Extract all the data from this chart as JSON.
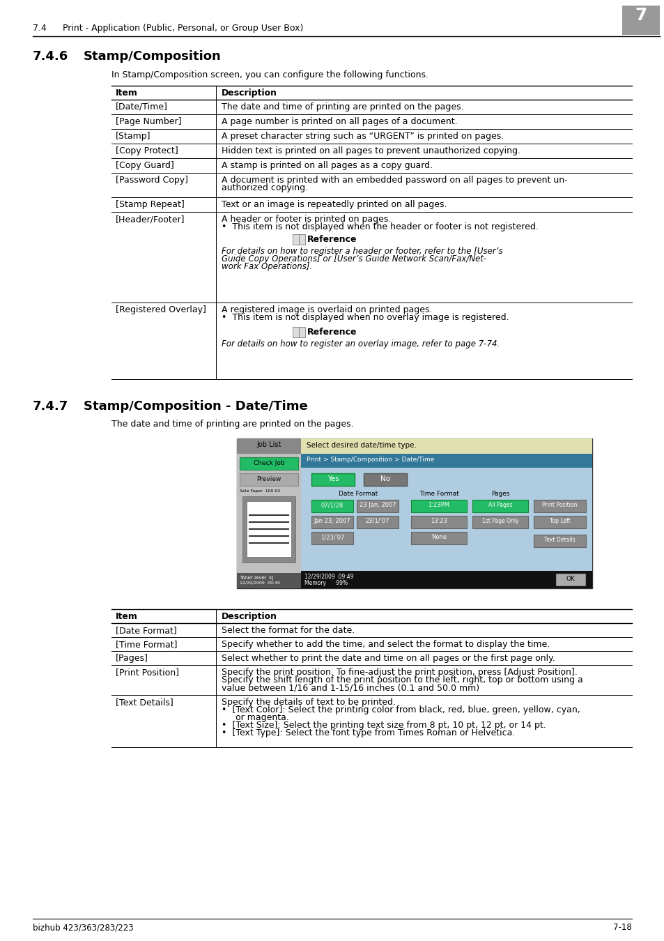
{
  "header_section_num": "7.4",
  "header_section_title": "Print - Application (Public, Personal, or Group User Box)",
  "header_page_num": "7",
  "footer_left": "bizhub 423/363/283/223",
  "footer_right": "7-18",
  "section1_num": "7.4.6",
  "section1_title": "Stamp/Composition",
  "section1_intro": "In Stamp/Composition screen, you can configure the following functions.",
  "table1_col1_header": "Item",
  "table1_col2_header": "Description",
  "table1_rows": [
    [
      "[Date/Time]",
      "[single]The date and time of printing are printed on the pages."
    ],
    [
      "[Page Number]",
      "[single]A page number is printed on all pages of a document."
    ],
    [
      "[Stamp]",
      "[single]A preset character string such as “URGENT” is printed on pages."
    ],
    [
      "[Copy Protect]",
      "[single]Hidden text is printed on all pages to prevent unauthorized copying."
    ],
    [
      "[Copy Guard]",
      "[single]A stamp is printed on all pages as a copy guard."
    ],
    [
      "[Password Copy]",
      "[multi]A document is printed with an embedded password on all pages to prevent un-|authorized copying."
    ],
    [
      "[Stamp Repeat]",
      "[single]Text or an image is repeatedly printed on all pages."
    ],
    [
      "[Header/Footer]",
      "[ref1]A header or footer is printed on pages.|This item is not displayed when the header or footer is not registered.|For details on how to register a header or footer, refer to the [User’s Guide Copy Operations] or [User’s Guide Network Scan/Fax/Net-work Fax Operations]."
    ],
    [
      "[Registered Overlay]",
      "[ref2]A registered image is overlaid on printed pages.|This item is not displayed when no overlay image is registered.|For details on how to register an overlay image, refer to page 7-74."
    ]
  ],
  "section2_num": "7.4.7",
  "section2_title": "Stamp/Composition - Date/Time",
  "section2_intro": "The date and time of printing are printed on the pages.",
  "table2_col1_header": "Item",
  "table2_col2_header": "Description",
  "table2_rows": [
    [
      "[Date Format]",
      "[single]Select the format for the date."
    ],
    [
      "[Time Format]",
      "[single]Specify whether to add the time, and select the format to display the time."
    ],
    [
      "[Pages]",
      "[single]Select whether to print the date and time on all pages or the first page only."
    ],
    [
      "[Print Position]",
      "[multi3]Specify the print position. To fine-adjust the print position, press [Adjust Position].|Specify the shift length of the print position to the left, right, top or bottom using a|value between 1/16 and 1-15/16 inches (0.1 and 50.0 mm)"
    ],
    [
      "[Text Details]",
      "[bullets]Specify the details of text to be printed.|[Text Color]: Select the printing color from black, red, blue, green, yellow, cyan,|    or magenta.|[Text Size]: Select the printing text size from 8 pt, 10 pt, 12 pt, or 14 pt.|[Text Type]: Select the font type from Times Roman or Helvetica."
    ]
  ],
  "bg_color": "#ffffff"
}
